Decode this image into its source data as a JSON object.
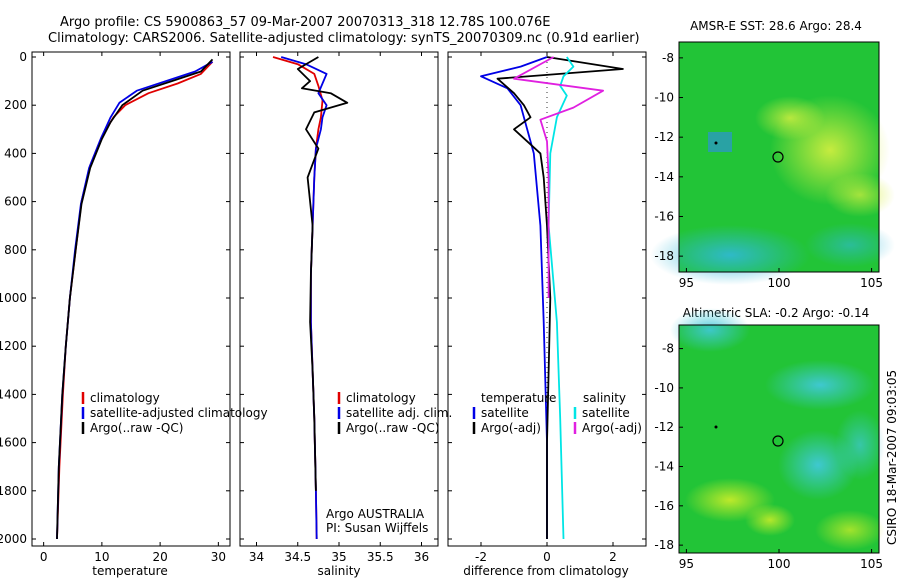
{
  "header": {
    "line1": "Argo profile: CS 5900863_57 09-Mar-2007 20070313_318 12.78S 100.076E",
    "line2": "Climatology: CARS2006. Satellite-adjusted climatology: synTS_20070309.nc (0.91d earlier)"
  },
  "colors": {
    "climatology": "#e00000",
    "satellite": "#0000e6",
    "argo": "#000000",
    "salinity_satellite": "#00e5e5",
    "salinity_argo": "#e020e0"
  },
  "chart_data": [
    {
      "type": "line",
      "name": "temperature-profile",
      "xlabel": "temperature",
      "ylabel": "",
      "xlim": [
        -2,
        32
      ],
      "ylim": [
        2000,
        0
      ],
      "xticks": [
        "0",
        "10",
        "20",
        "30"
      ],
      "yticks": [
        "0",
        "200",
        "400",
        "600",
        "800",
        "1000",
        "1200",
        "1400",
        "1600",
        "1800",
        "2000"
      ],
      "legend": [
        "climatology",
        "satellite-adjusted climatology",
        "Argo(..raw -QC)"
      ],
      "series": [
        {
          "name": "climatology",
          "color": "#e00000",
          "x": [
            29,
            27,
            23,
            18,
            14,
            12,
            10,
            8,
            6.5,
            5.5,
            4.5,
            3.8,
            3.3,
            2.7,
            2.3
          ],
          "y": [
            20,
            70,
            110,
            150,
            200,
            250,
            330,
            450,
            600,
            800,
            1000,
            1200,
            1400,
            1700,
            2000
          ]
        },
        {
          "name": "satellite-adjusted climatology",
          "color": "#0000e6",
          "x": [
            29,
            26,
            21,
            16,
            13,
            11.5,
            9.8,
            7.8,
            6.4,
            5.4,
            4.5,
            3.8,
            3.2,
            2.6,
            2.3
          ],
          "y": [
            20,
            60,
            100,
            140,
            190,
            250,
            340,
            460,
            610,
            800,
            1000,
            1200,
            1400,
            1700,
            2000
          ]
        },
        {
          "name": "Argo(..raw -QC)",
          "color": "#000000",
          "x": [
            29,
            27,
            22,
            17,
            13.5,
            11.5,
            10,
            8,
            6.5,
            5.5,
            4.5,
            3.8,
            3.2,
            2.6,
            2.3
          ],
          "y": [
            10,
            60,
            100,
            140,
            200,
            270,
            340,
            460,
            610,
            800,
            1000,
            1200,
            1400,
            1700,
            2000
          ]
        }
      ]
    },
    {
      "type": "line",
      "name": "salinity-profile",
      "xlabel": "salinity",
      "ylabel": "",
      "xlim": [
        33.8,
        36.2
      ],
      "ylim": [
        2000,
        0
      ],
      "xticks": [
        "34",
        "34.5",
        "35",
        "35.5",
        "36"
      ],
      "legend": [
        "climatology",
        "satellite adj. clim.",
        "Argo(..raw -QC)"
      ],
      "annotation": [
        "Argo AUSTRALIA",
        "PI: Susan Wijffels"
      ],
      "series": [
        {
          "name": "climatology",
          "color": "#e00000",
          "x": [
            34.2,
            34.5,
            34.7,
            34.75,
            34.8,
            34.78,
            34.75,
            34.72,
            34.7,
            34.68,
            34.66,
            34.66,
            34.68,
            34.7,
            34.72,
            34.73
          ],
          "y": [
            0,
            30,
            70,
            120,
            180,
            250,
            300,
            380,
            500,
            700,
            900,
            1100,
            1300,
            1500,
            1800,
            2000
          ]
        },
        {
          "name": "satellite adj. clim.",
          "color": "#0000e6",
          "x": [
            34.3,
            34.6,
            34.85,
            34.8,
            34.75,
            34.85,
            34.8,
            34.78,
            34.72,
            34.7,
            34.68,
            34.66,
            34.66,
            34.68,
            34.7,
            34.72,
            34.73
          ],
          "y": [
            0,
            30,
            70,
            110,
            150,
            200,
            250,
            300,
            380,
            500,
            700,
            900,
            1100,
            1300,
            1500,
            1800,
            2000
          ]
        },
        {
          "name": "Argo(..raw -QC)",
          "color": "#000000",
          "x": [
            34.75,
            34.5,
            34.65,
            34.55,
            34.9,
            35.1,
            34.7,
            34.6,
            34.75,
            34.62,
            34.68,
            34.66,
            34.65,
            34.68,
            34.7,
            34.72
          ],
          "y": [
            0,
            50,
            100,
            130,
            150,
            190,
            230,
            300,
            380,
            500,
            700,
            900,
            1100,
            1300,
            1500,
            1800
          ]
        }
      ]
    },
    {
      "type": "line",
      "name": "difference-profile",
      "xlabel": "difference from climatology",
      "ylabel": "",
      "xlim": [
        -3,
        3
      ],
      "ylim": [
        2000,
        0
      ],
      "xticks": [
        "-2",
        "0",
        "2"
      ],
      "legend_left_title": "temperature",
      "legend_right_title": "salinity",
      "legend": [
        "satellite",
        "Argo(-adj)",
        "satellite",
        "Argo(-adj)"
      ],
      "series": [
        {
          "name": "temperature satellite",
          "color": "#0000e6",
          "x": [
            0,
            -0.8,
            -2,
            -1.2,
            -0.8,
            -0.4,
            -0.2,
            -0.1,
            0,
            0
          ],
          "y": [
            0,
            40,
            80,
            130,
            200,
            400,
            700,
            1100,
            1600,
            2000
          ]
        },
        {
          "name": "temperature Argo(-adj)",
          "color": "#000000",
          "x": [
            0,
            2.3,
            -1.5,
            -1,
            -0.7,
            -0.5,
            -1,
            -0.2,
            -0.1,
            0,
            0.1,
            0,
            0
          ],
          "y": [
            0,
            50,
            90,
            150,
            200,
            250,
            300,
            400,
            500,
            700,
            1000,
            1600,
            2000
          ]
        },
        {
          "name": "salinity satellite",
          "color": "#00e5e5",
          "x": [
            0.6,
            0.8,
            0.5,
            0.4,
            0.6,
            0.3,
            0.1,
            0.05,
            0.3,
            0.4,
            0.5
          ],
          "y": [
            0,
            40,
            80,
            120,
            160,
            250,
            400,
            700,
            1100,
            1500,
            2000
          ]
        },
        {
          "name": "salinity Argo(-adj)",
          "color": "#e020e0",
          "x": [
            0.2,
            -1,
            1.7,
            0.8,
            -0.2,
            0,
            0.05,
            0.05,
            0.05
          ],
          "y": [
            0,
            90,
            140,
            210,
            260,
            350,
            500,
            800,
            1000
          ]
        }
      ]
    }
  ],
  "maps": [
    {
      "title": "AMSR-E SST: 28.6 Argo: 28.4",
      "xticks": [
        "95",
        "100",
        "105"
      ],
      "yticks": [
        "-8",
        "-10",
        "-12",
        "-14",
        "-16",
        "-18"
      ],
      "marker": "circle at 100.076E 12.78S"
    },
    {
      "title": "Altimetric SLA: -0.2 Argo: -0.14",
      "xticks": [
        "95",
        "100",
        "105"
      ],
      "yticks": [
        "-8",
        "-10",
        "-12",
        "-14",
        "-16",
        "-18"
      ],
      "marker": "circle at 100.076E 12.78S"
    }
  ],
  "footer_vertical": "CSIRO 18-Mar-2007 09:03:05"
}
